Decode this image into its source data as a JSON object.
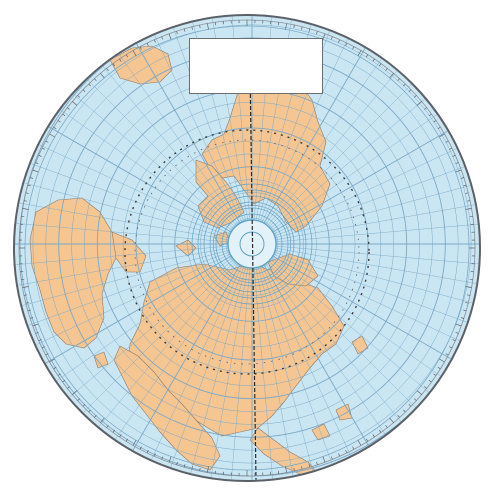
{
  "map": {
    "projection": "polar",
    "center": "North Pole",
    "title_lines": [
      "",
      "",
      "",
      ""
    ],
    "colors": {
      "ocean": "#cbe6f3",
      "land": "#f5c592",
      "land_border": "#8a7a6a",
      "graticule": "#7aa9c7",
      "rim": "#5c6168",
      "center_circle": "#5da2c8",
      "meridian_line": "#2b2b2b",
      "tick_marks": "#3a3a3a",
      "title_box": "#ffffff"
    },
    "graticule": {
      "parallel_rings": 18,
      "meridians": 72
    }
  }
}
